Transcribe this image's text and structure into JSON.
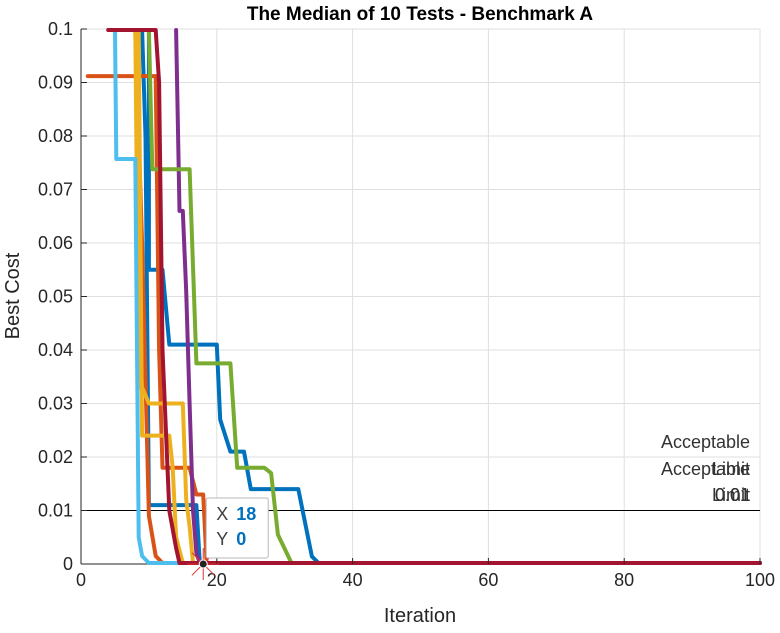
{
  "chart_data": {
    "type": "line",
    "title": "The Median of 10 Tests - Benchmark A",
    "xlabel": "Iteration",
    "ylabel": "Best Cost",
    "xlim": [
      0,
      100
    ],
    "ylim": [
      0,
      0.1
    ],
    "xticks": [
      "0",
      "20",
      "40",
      "60",
      "80",
      "100"
    ],
    "yticks": [
      "0",
      "0.01",
      "0.02",
      "0.03",
      "0.04",
      "0.05",
      "0.06",
      "0.07",
      "0.08",
      "0.09",
      "0.1"
    ],
    "grid": true,
    "reference_line": {
      "y": 0.01,
      "color": "#000000",
      "label_lines": [
        "Acceptable",
        "Acceptable",
        "Limit",
        "Limit",
        "0.01",
        "0.01"
      ]
    },
    "series": [
      {
        "color": "#0072BD",
        "points": [
          [
            9,
            0.1
          ],
          [
            10,
            0.1
          ],
          [
            10,
            0.055
          ],
          [
            12,
            0.055
          ],
          [
            13,
            0.041
          ],
          [
            20,
            0.041
          ],
          [
            20.5,
            0.027
          ],
          [
            22,
            0.021
          ],
          [
            24,
            0.021
          ],
          [
            25,
            0.014
          ],
          [
            32,
            0.014
          ],
          [
            34,
            0.0014
          ],
          [
            35,
            0
          ],
          [
            100,
            0
          ]
        ]
      },
      {
        "color": "#0072BD",
        "points": [
          [
            9,
            0.1
          ],
          [
            9.5,
            0.08
          ],
          [
            10,
            0.011
          ],
          [
            17,
            0.011
          ],
          [
            17.5,
            0
          ],
          [
            100,
            0
          ]
        ]
      },
      {
        "color": "#D95319",
        "points": [
          [
            1,
            0.0912
          ],
          [
            11,
            0.0912
          ],
          [
            11.5,
            0.04
          ],
          [
            12,
            0.018
          ],
          [
            16,
            0.018
          ],
          [
            17,
            0.013
          ],
          [
            18,
            0.013
          ],
          [
            18.5,
            0
          ],
          [
            100,
            0
          ]
        ]
      },
      {
        "color": "#D95319",
        "points": [
          [
            8,
            0.1
          ],
          [
            9,
            0.06
          ],
          [
            10,
            0.009
          ],
          [
            11,
            0.0015
          ],
          [
            12,
            0
          ],
          [
            100,
            0
          ]
        ]
      },
      {
        "color": "#EDB120",
        "points": [
          [
            8,
            0.1
          ],
          [
            8.5,
            0.033
          ],
          [
            9,
            0.033
          ],
          [
            10,
            0.03
          ],
          [
            15,
            0.03
          ],
          [
            15.5,
            0.012
          ],
          [
            16,
            0.007
          ],
          [
            16.5,
            0
          ],
          [
            100,
            0
          ]
        ]
      },
      {
        "color": "#EDB120",
        "points": [
          [
            8.5,
            0.1
          ],
          [
            9,
            0.024
          ],
          [
            13,
            0.024
          ],
          [
            13.5,
            0.018
          ],
          [
            14,
            0.005
          ],
          [
            15,
            0
          ],
          [
            100,
            0
          ]
        ]
      },
      {
        "color": "#7E2F8E",
        "points": [
          [
            14,
            0.1
          ],
          [
            14.5,
            0.066
          ],
          [
            15,
            0.066
          ],
          [
            15.5,
            0.051
          ],
          [
            16,
            0.03
          ],
          [
            16.5,
            0.01
          ],
          [
            17,
            0.002
          ],
          [
            17.5,
            0
          ],
          [
            100,
            0
          ]
        ]
      },
      {
        "color": "#77AC30",
        "points": [
          [
            10,
            0.1
          ],
          [
            10.5,
            0.0738
          ],
          [
            16,
            0.0738
          ],
          [
            17,
            0.0375
          ],
          [
            22,
            0.0375
          ],
          [
            23,
            0.018
          ],
          [
            27,
            0.018
          ],
          [
            28,
            0.017
          ],
          [
            29,
            0.0055
          ],
          [
            31,
            0
          ],
          [
            100,
            0
          ]
        ]
      },
      {
        "color": "#4DBEEE",
        "points": [
          [
            5,
            0.1
          ],
          [
            5.2,
            0.0757
          ],
          [
            8,
            0.0757
          ],
          [
            8.5,
            0.005
          ],
          [
            9,
            0.0015
          ],
          [
            10,
            0
          ],
          [
            100,
            0
          ]
        ]
      },
      {
        "color": "#A2142F",
        "points": [
          [
            4,
            0.1
          ],
          [
            11,
            0.1
          ],
          [
            11.5,
            0.09
          ],
          [
            12,
            0.04
          ],
          [
            13,
            0.01
          ],
          [
            14,
            0.003
          ],
          [
            14.5,
            0
          ],
          [
            100,
            0
          ]
        ]
      }
    ],
    "datatip": {
      "x_label": "X",
      "x_value": "18",
      "y_label": "Y",
      "y_value": "0",
      "x": 18,
      "y": 0
    }
  }
}
